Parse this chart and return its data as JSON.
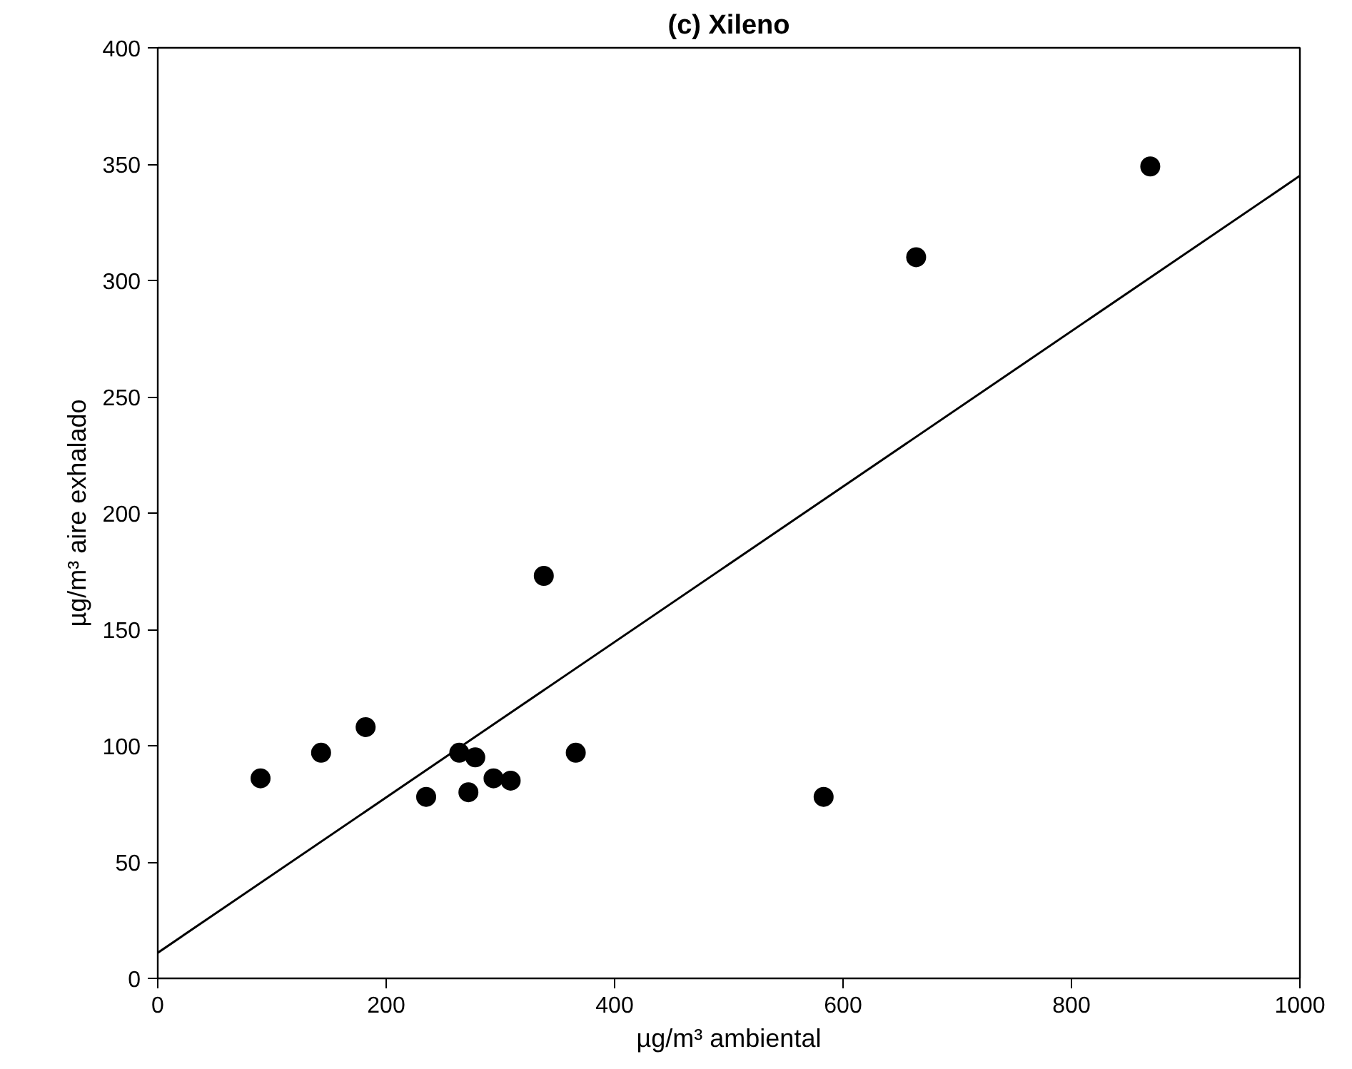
{
  "chart_data": {
    "type": "scatter",
    "title": "(c) Xileno",
    "xlabel": "µg/m³ ambiental",
    "ylabel": "µg/m³ aire exhalado",
    "xlim": [
      0,
      1000
    ],
    "ylim": [
      0,
      400
    ],
    "xticks": [
      0,
      200,
      400,
      600,
      800,
      1000
    ],
    "yticks": [
      0,
      50,
      100,
      150,
      200,
      250,
      300,
      350,
      400
    ],
    "grid": false,
    "series": [
      {
        "marker": "circle",
        "color": "#000000",
        "x": [
          90,
          143,
          182,
          235,
          264,
          272,
          278,
          294,
          309,
          338,
          366,
          583,
          664,
          869
        ],
        "values": [
          86,
          97,
          108,
          78,
          97,
          80,
          95,
          86,
          85,
          173,
          97,
          78,
          310,
          349
        ]
      },
      {
        "type": "line",
        "color": "#000000",
        "x": [
          0,
          1000
        ],
        "values": [
          11,
          345
        ],
        "line_style": "solid",
        "marker": "none"
      }
    ]
  }
}
